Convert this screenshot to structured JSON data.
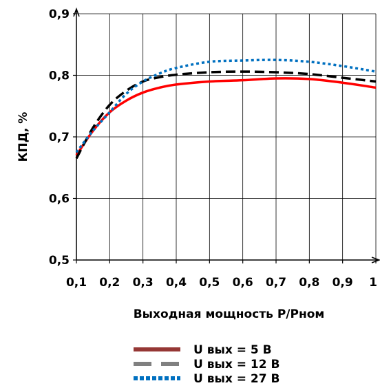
{
  "chart_data": {
    "type": "line",
    "xlabel": "Выходная мощность P/Pном",
    "ylabel": "КПД, %",
    "xlim": [
      0.1,
      1.0
    ],
    "ylim": [
      0.5,
      0.9
    ],
    "x_ticks": [
      0.1,
      0.2,
      0.3,
      0.4,
      0.5,
      0.6,
      0.7,
      0.8,
      0.9,
      1.0
    ],
    "x_tick_labels": [
      "0,1",
      "0,2",
      "0,3",
      "0,4",
      "0,5",
      "0,6",
      "0,7",
      "0,8",
      "0,9",
      "1"
    ],
    "y_ticks": [
      0.5,
      0.6,
      0.7,
      0.8,
      0.9
    ],
    "y_tick_labels": [
      "0,5",
      "0,6",
      "0,7",
      "0,8",
      "0,9"
    ],
    "grid": true,
    "legend_position": "bottom-center",
    "series": [
      {
        "name": "U вых = 5 В",
        "color": "#ff0000",
        "legend_color": "#953735",
        "style": "solid",
        "x": [
          0.1,
          0.15,
          0.2,
          0.25,
          0.3,
          0.35,
          0.4,
          0.5,
          0.6,
          0.7,
          0.8,
          0.9,
          1.0
        ],
        "y": [
          0.67,
          0.71,
          0.74,
          0.759,
          0.772,
          0.78,
          0.785,
          0.79,
          0.792,
          0.795,
          0.794,
          0.788,
          0.78
        ]
      },
      {
        "name": "U вых = 12 В",
        "color": "#000000",
        "legend_color": "#808080",
        "style": "dashed",
        "x": [
          0.1,
          0.15,
          0.2,
          0.25,
          0.3,
          0.35,
          0.4,
          0.5,
          0.6,
          0.7,
          0.8,
          0.9,
          1.0
        ],
        "y": [
          0.665,
          0.715,
          0.752,
          0.775,
          0.79,
          0.797,
          0.801,
          0.805,
          0.806,
          0.805,
          0.802,
          0.796,
          0.79
        ]
      },
      {
        "name": "U вых = 27 В",
        "color": "#0070c0",
        "legend_color": "#0070c0",
        "style": "dotted",
        "x": [
          0.1,
          0.15,
          0.2,
          0.25,
          0.3,
          0.35,
          0.4,
          0.5,
          0.6,
          0.7,
          0.8,
          0.9,
          1.0
        ],
        "y": [
          0.675,
          0.71,
          0.74,
          0.77,
          0.79,
          0.803,
          0.812,
          0.822,
          0.824,
          0.825,
          0.822,
          0.815,
          0.806
        ]
      }
    ]
  }
}
